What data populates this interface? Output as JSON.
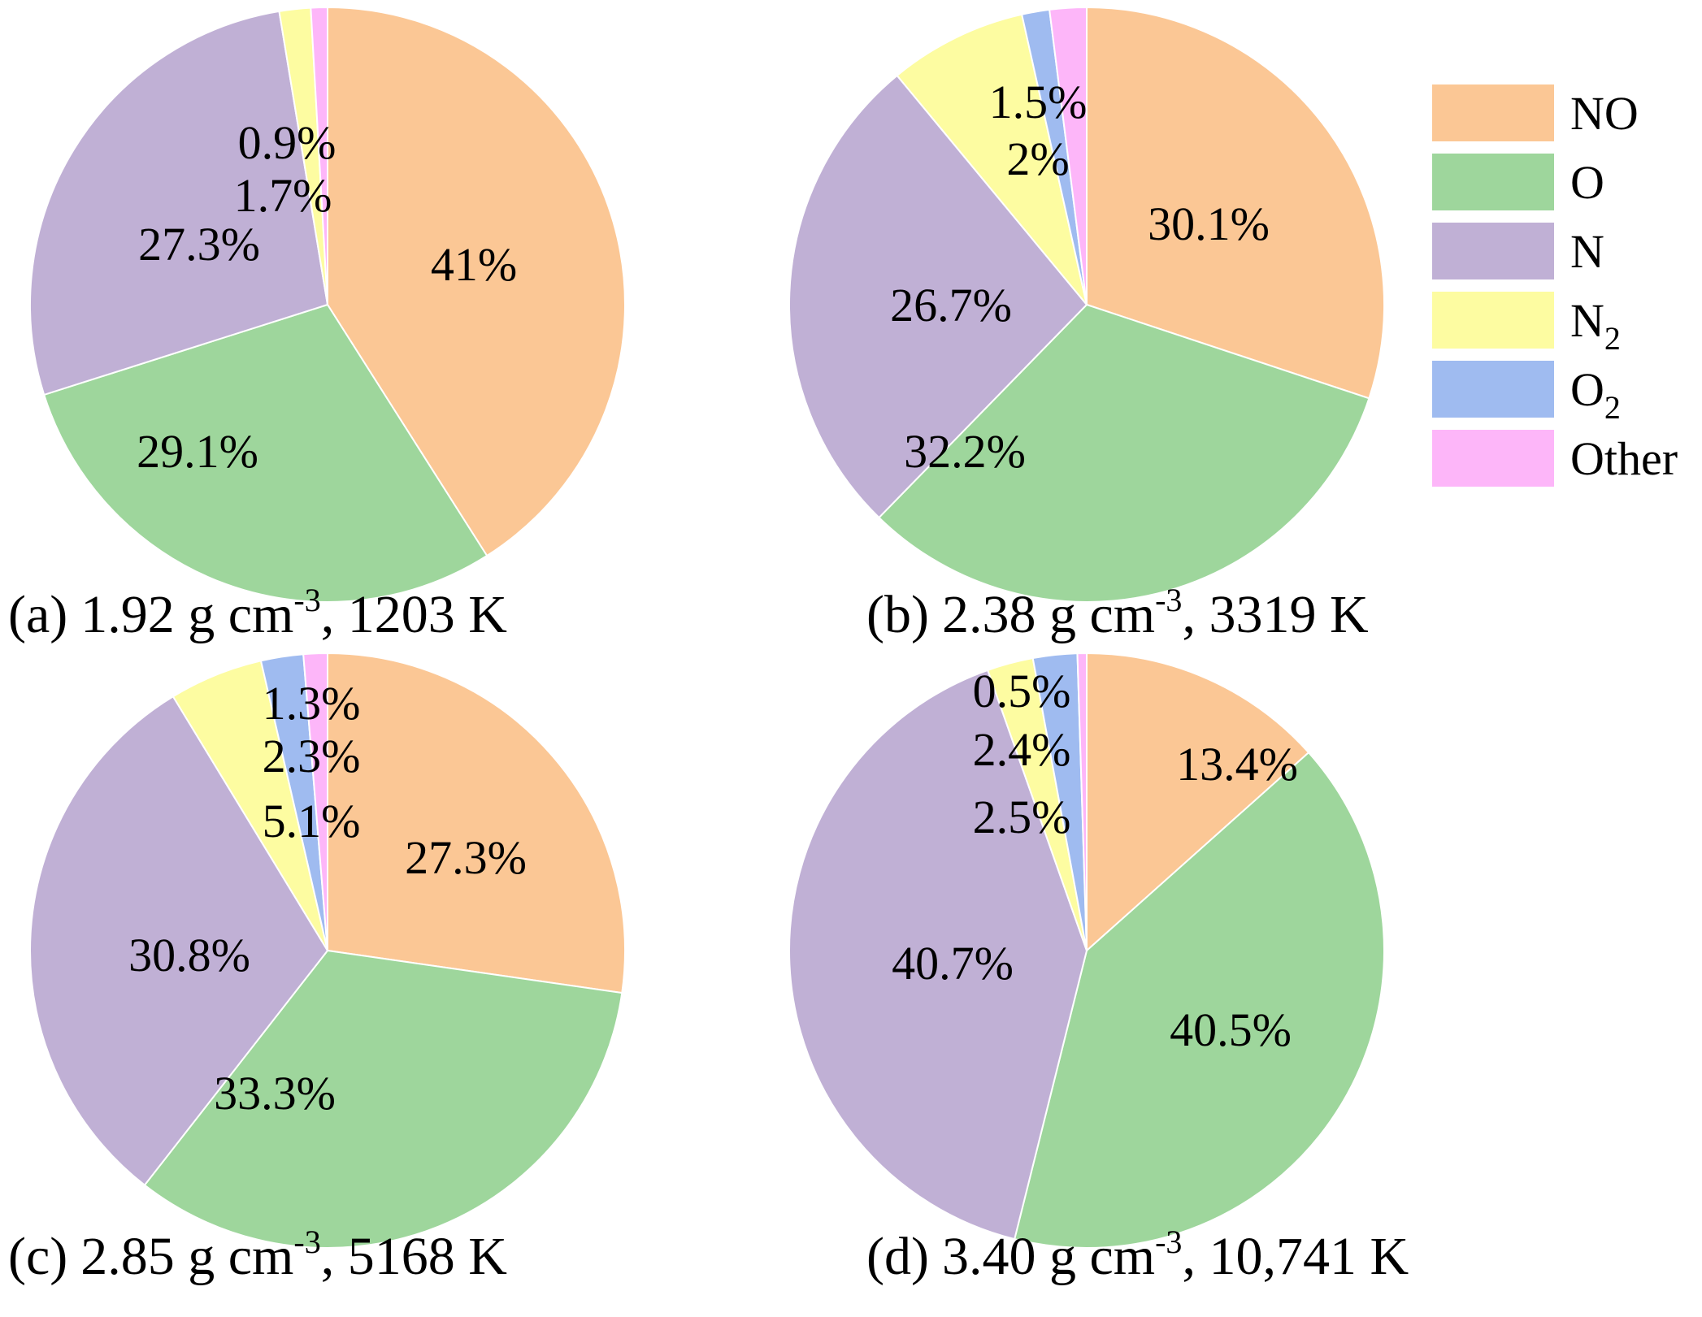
{
  "chart_data": [
    {
      "type": "pie",
      "panel": "(a)",
      "caption": {
        "label": "(a)",
        "pre": "1.92 g cm",
        "sup": "-3",
        "post": ", 1203 K"
      },
      "slices": [
        {
          "key": "NO",
          "value": 41,
          "label": "41%"
        },
        {
          "key": "O",
          "value": 29.1,
          "label": "29.1%"
        },
        {
          "key": "N",
          "value": 27.3,
          "label": "27.3%"
        },
        {
          "key": "N2",
          "value": 1.7,
          "label": "1.7%"
        },
        {
          "key": "O2",
          "value": 0,
          "label": ""
        },
        {
          "key": "Other",
          "value": 0.9,
          "label": "0.9%"
        }
      ]
    },
    {
      "type": "pie",
      "panel": "(b)",
      "caption": {
        "label": "(b)",
        "pre": "2.38 g cm",
        "sup": "-3",
        "post": ", 3319 K"
      },
      "slices": [
        {
          "key": "NO",
          "value": 30.1,
          "label": "30.1%"
        },
        {
          "key": "O",
          "value": 32.2,
          "label": "32.2%"
        },
        {
          "key": "N",
          "value": 26.7,
          "label": "26.7%"
        },
        {
          "key": "N2",
          "value": 7.5,
          "label": ""
        },
        {
          "key": "O2",
          "value": 1.5,
          "label": "1.5%"
        },
        {
          "key": "Other",
          "value": 2,
          "label": "2%"
        }
      ]
    },
    {
      "type": "pie",
      "panel": "(c)",
      "caption": {
        "label": "(c)",
        "pre": "2.85 g cm",
        "sup": "-3",
        "post": ", 5168 K"
      },
      "slices": [
        {
          "key": "NO",
          "value": 27.3,
          "label": "27.3%"
        },
        {
          "key": "O",
          "value": 33.3,
          "label": "33.3%"
        },
        {
          "key": "N",
          "value": 30.8,
          "label": "30.8%"
        },
        {
          "key": "N2",
          "value": 5.1,
          "label": "5.1%"
        },
        {
          "key": "O2",
          "value": 2.3,
          "label": "2.3%"
        },
        {
          "key": "Other",
          "value": 1.3,
          "label": "1.3%"
        }
      ]
    },
    {
      "type": "pie",
      "panel": "(d)",
      "caption": {
        "label": "(d)",
        "pre": "3.40 g cm",
        "sup": "-3",
        "post": ", 10,741 K"
      },
      "slices": [
        {
          "key": "NO",
          "value": 13.4,
          "label": "13.4%"
        },
        {
          "key": "O",
          "value": 40.5,
          "label": "40.5%"
        },
        {
          "key": "N",
          "value": 40.7,
          "label": "40.7%"
        },
        {
          "key": "N2",
          "value": 2.5,
          "label": "2.5%"
        },
        {
          "key": "O2",
          "value": 2.4,
          "label": "2.4%"
        },
        {
          "key": "Other",
          "value": 0.5,
          "label": "0.5%"
        }
      ]
    }
  ],
  "legend": {
    "placement": "top-right",
    "entries": [
      {
        "key": "NO",
        "text": "NO",
        "sub": "",
        "color": "#fbc795"
      },
      {
        "key": "O",
        "text": "O",
        "sub": "",
        "color": "#9ed69c"
      },
      {
        "key": "N",
        "text": "N",
        "sub": "",
        "color": "#c0b0d5"
      },
      {
        "key": "N2",
        "text": "N",
        "sub": "2",
        "color": "#fdfca1"
      },
      {
        "key": "O2",
        "text": "O",
        "sub": "2",
        "color": "#9fbbf0"
      },
      {
        "key": "Other",
        "text": "Other",
        "sub": "",
        "color": "#fdb6f9"
      }
    ]
  }
}
